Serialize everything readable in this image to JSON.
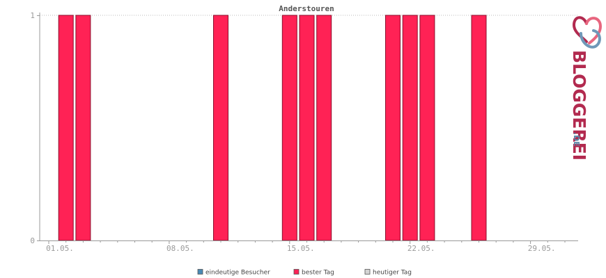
{
  "chart_data": {
    "type": "bar",
    "title": "Anderstouren",
    "x_tick_labels": [
      "01.05.",
      "08.05.",
      "15.05.",
      "22.05.",
      "29.05."
    ],
    "y_tick_labels": [
      "0",
      "1"
    ],
    "ylim": [
      0,
      1
    ],
    "days": 31,
    "series": [
      {
        "name": "bester Tag",
        "color": "#ff2255",
        "values": [
          0,
          1,
          1,
          0,
          0,
          0,
          0,
          0,
          0,
          0,
          1,
          0,
          0,
          0,
          1,
          1,
          1,
          0,
          0,
          0,
          1,
          1,
          1,
          0,
          0,
          1,
          0,
          0,
          0,
          0,
          0
        ]
      }
    ],
    "legend": [
      {
        "label": "eindeutige Besucher",
        "color": "#4a8ab5"
      },
      {
        "label": "bester Tag",
        "color": "#ff2255"
      },
      {
        "label": "heutiger Tag",
        "color": "#d4d4d4"
      }
    ],
    "legend_position": "bottom-center",
    "grid": true
  },
  "logo": {
    "text": "BLOGGEREI",
    "suffix": ".DE",
    "icon": "bloggerei-heart-icon"
  }
}
